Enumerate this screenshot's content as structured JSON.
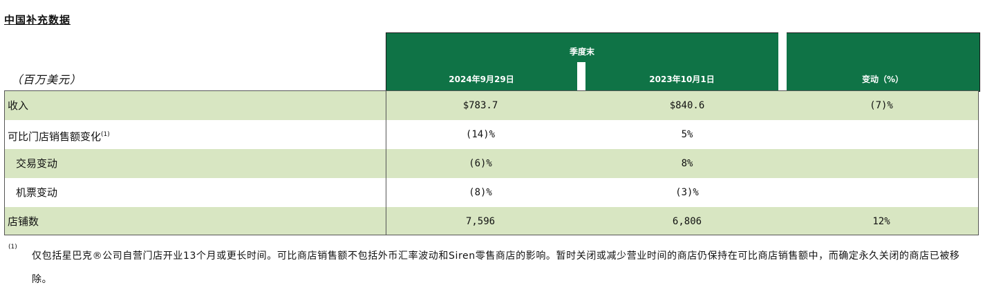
{
  "title": "中国补充数据",
  "unit_label": "（百万美元）",
  "header": {
    "group_label": "季度末",
    "columns": [
      "2024年9月29日",
      "2023年10月1日",
      "变动（%）"
    ]
  },
  "rows": [
    {
      "label": "收入",
      "values": [
        "$783.7",
        "$840.6",
        "(7)%"
      ]
    },
    {
      "label": "可比门店销售额变化",
      "sup": "(1)",
      "values": [
        "(14)%",
        "5%",
        ""
      ]
    },
    {
      "label": "交易变动",
      "values": [
        "(6)%",
        "8%",
        ""
      ]
    },
    {
      "label": "机票变动",
      "values": [
        "(8)%",
        "(3)%",
        ""
      ]
    },
    {
      "label": "店铺数",
      "values": [
        "7,596",
        "6,806",
        "12%"
      ]
    }
  ],
  "footnote": {
    "marker": "(1)",
    "text": "仅包括星巴克®公司自营门店开业13个月或更长时间。可比商店销售额不包括外币汇率波动和Siren零售商店的影响。暂时关闭或减少营业时间的商店仍保持在可比商店销售额中，而确定永久关闭的商店已被移除。"
  }
}
